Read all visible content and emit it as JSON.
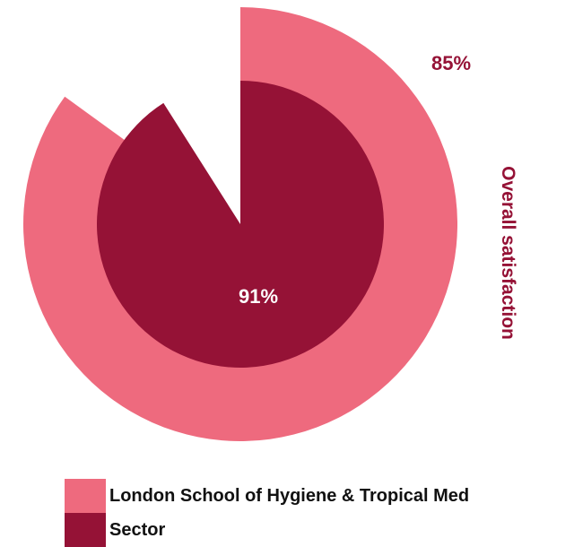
{
  "chart_data": {
    "type": "pie",
    "title": "Overall satisfaction",
    "series": [
      {
        "name": "London School of Hygiene & Tropical Med",
        "value": 85,
        "value_label": "85%",
        "color": "#ee6a7e"
      },
      {
        "name": "Sector",
        "value": 91,
        "value_label": "91%",
        "color": "#951236"
      }
    ],
    "legend": "bottom"
  },
  "colors": {
    "title": "#951236",
    "outer_label": "#951236",
    "inner_label": "#ffffff"
  }
}
